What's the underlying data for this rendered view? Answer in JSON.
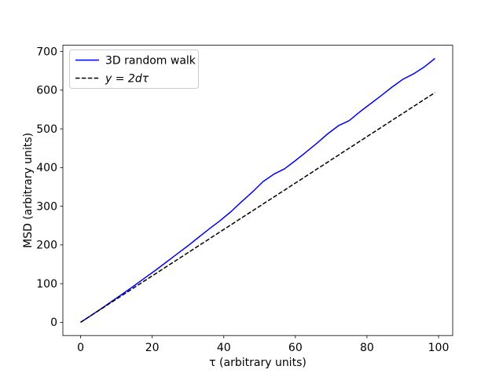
{
  "figure": {
    "background": "#ffffff"
  },
  "chart_data": {
    "type": "line",
    "title": "",
    "xlabel": "τ (arbitrary units)",
    "ylabel": "MSD (arbitrary units)",
    "xlim": [
      -4.95,
      103.95
    ],
    "ylim": [
      -34.1,
      716.1
    ],
    "x_ticks": [
      0,
      20,
      40,
      60,
      80,
      100
    ],
    "y_ticks": [
      0,
      100,
      200,
      300,
      400,
      500,
      600,
      700
    ],
    "grid": false,
    "legend": {
      "position": "upper left",
      "border_color": "#cccccc",
      "background": "#ffffff"
    },
    "series": [
      {
        "name": "3D random walk",
        "color": "#0000ff",
        "line_style": "solid",
        "label_style": "plain",
        "x": [
          0,
          3,
          6,
          9,
          12,
          15,
          18,
          21,
          24,
          27,
          30,
          33,
          36,
          39,
          42,
          45,
          48,
          51,
          54,
          57,
          60,
          63,
          66,
          69,
          72,
          75,
          78,
          81,
          84,
          87,
          90,
          93,
          96,
          99
        ],
        "y": [
          0,
          18,
          37,
          56,
          75,
          95,
          115,
          135,
          156,
          177,
          198,
          220,
          242,
          263,
          286,
          312,
          337,
          364,
          383,
          397,
          418,
          440,
          463,
          487,
          508,
          521,
          544,
          565,
          586,
          608,
          628,
          642,
          660,
          682
        ]
      },
      {
        "name": "y = 2dτ",
        "color": "#000000",
        "line_style": "dashed",
        "label_style": "math-italic",
        "x": [
          0,
          99
        ],
        "y": [
          0,
          594
        ]
      }
    ]
  }
}
